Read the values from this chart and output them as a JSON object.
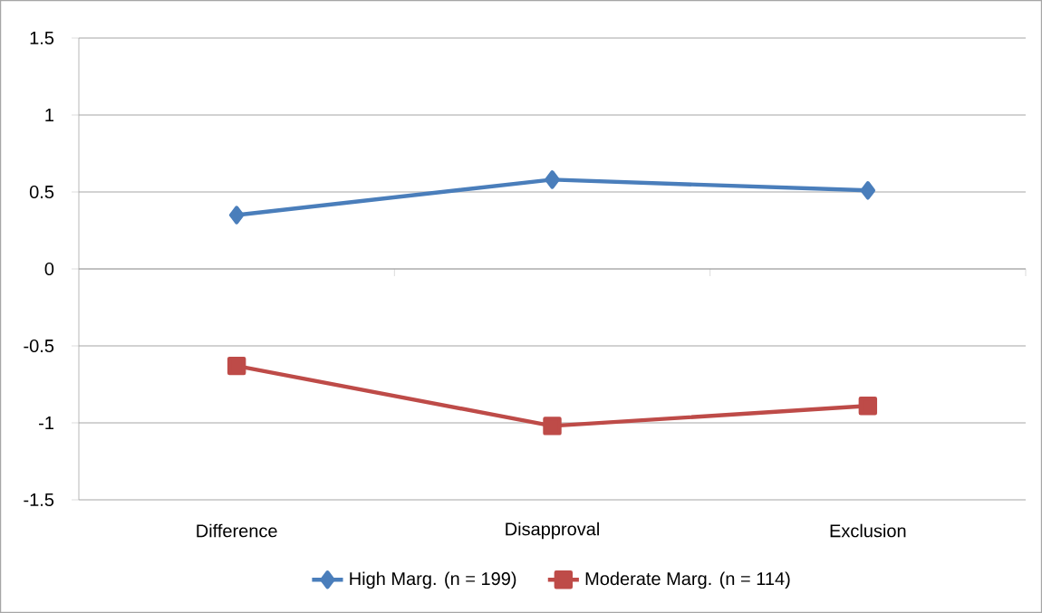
{
  "chart_data": {
    "type": "line",
    "categories": [
      "Difference",
      "Disapproval",
      "Exclusion"
    ],
    "series": [
      {
        "name": "High Marg. (n = 199)",
        "color": "#4a7ebb",
        "marker": "diamond",
        "values": [
          0.35,
          0.58,
          0.51
        ]
      },
      {
        "name": "Moderate Marg. (n = 114)",
        "color": "#be4b48",
        "marker": "square",
        "values": [
          -0.63,
          -1.02,
          -0.89
        ]
      }
    ],
    "ylim": [
      -1.5,
      1.5
    ],
    "yticks": [
      -1.5,
      -1,
      -0.5,
      0,
      0.5,
      1,
      1.5
    ],
    "grid": "y",
    "legend": "bottom",
    "line_style": "solid"
  }
}
